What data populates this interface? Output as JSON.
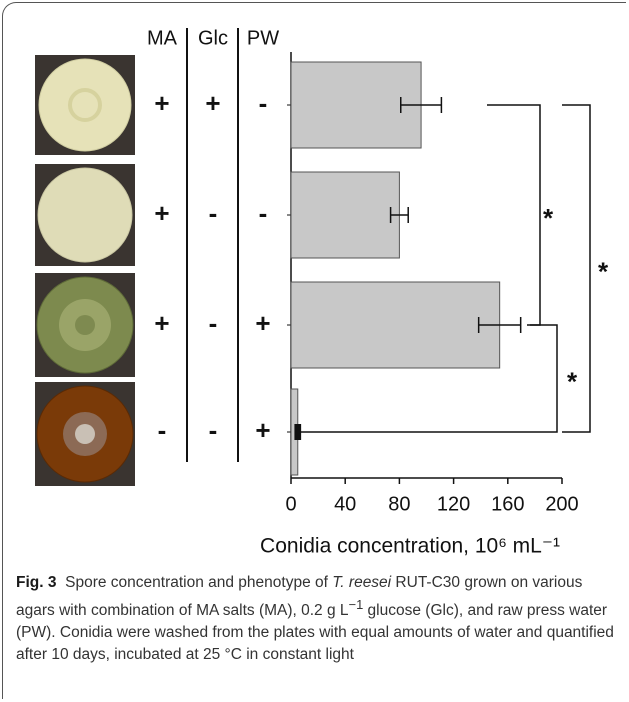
{
  "chart_data": {
    "type": "bar",
    "orientation": "horizontal",
    "table": {
      "columns": [
        "MA",
        "Glc",
        "PW"
      ],
      "rows": [
        [
          "+",
          "+",
          "-"
        ],
        [
          "+",
          "-",
          "-"
        ],
        [
          "+",
          "-",
          "+"
        ],
        [
          "-",
          "-",
          "+"
        ]
      ]
    },
    "categories": [
      null,
      null,
      null,
      null
    ],
    "values": [
      96,
      80,
      154,
      5
    ],
    "errors": [
      15,
      6.5,
      15.5,
      1
    ],
    "color": "#c8c8c8",
    "xlim": [
      0,
      200
    ],
    "xticks": [
      0,
      40,
      80,
      120,
      160,
      200
    ],
    "xlabel": "Conidia concentration, 10⁶ mL⁻¹",
    "significance": [
      {
        "pair": [
          0,
          2
        ],
        "label": "*"
      },
      {
        "pair": [
          2,
          3
        ],
        "label": "*"
      },
      {
        "pair": [
          0,
          3
        ],
        "label": "*"
      }
    ]
  },
  "caption": {
    "label": "Fig. 3",
    "parts": [
      "Spore concentration and phenotype of ",
      "T. reesei",
      " RUT-C30 grown on various agars with combination of MA salts (MA), 0.2 g L",
      "−1",
      " glucose (Glc), and raw press water (PW). Conidia were washed from the plates with equal amounts of water and quantified after 10 days, incubated at 25 °C in constant light"
    ]
  }
}
